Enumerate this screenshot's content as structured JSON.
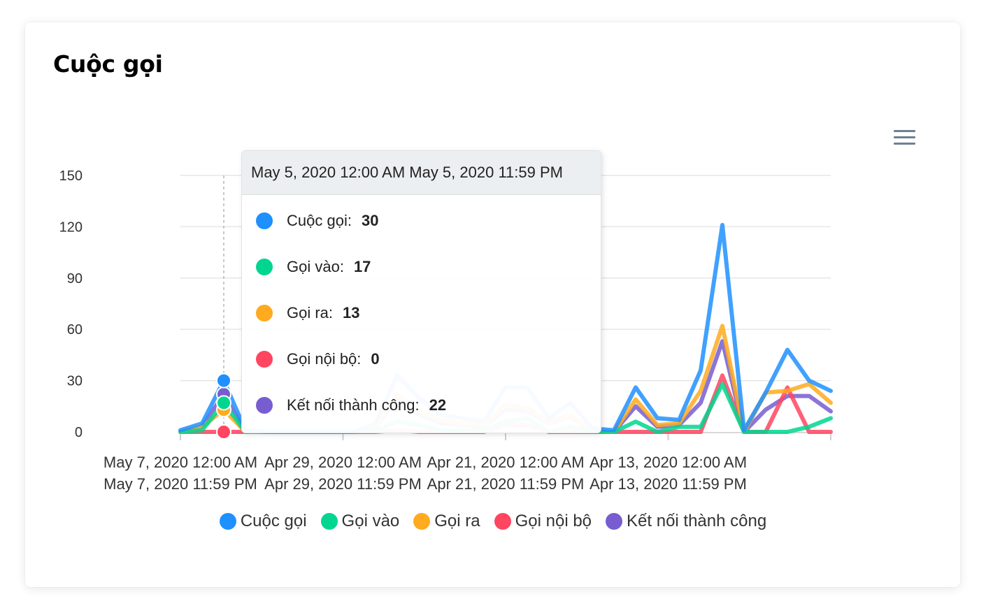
{
  "card": {
    "title": "Cuộc gọi"
  },
  "chart_data": {
    "type": "line",
    "title": "Cuộc gọi",
    "ylim": [
      0,
      150
    ],
    "yticks": [
      0,
      30,
      60,
      90,
      120,
      150
    ],
    "x_tick_labels": [
      [
        "May 7, 2020 12:00 AM",
        "May 7, 2020 11:59 PM"
      ],
      [
        "Apr 29, 2020 12:00 AM",
        "Apr 29, 2020 11:59 PM"
      ],
      [
        "Apr 21, 2020 12:00 AM",
        "Apr 21, 2020 11:59 PM"
      ],
      [
        "Apr 13, 2020 12:00 AM",
        "Apr 13, 2020 11:59 PM"
      ]
    ],
    "point_count": 31,
    "series": [
      {
        "name": "Cuộc gọi",
        "color": "#1e90ff",
        "values": [
          1,
          5,
          30,
          1,
          0,
          0,
          0,
          0,
          0,
          5,
          33,
          20,
          10,
          8,
          6,
          26,
          26,
          8,
          17,
          2,
          1,
          26,
          8,
          7,
          36,
          121,
          1,
          23,
          48,
          30,
          24
        ]
      },
      {
        "name": "Gọi vào",
        "color": "#00d68f",
        "values": [
          0,
          1,
          17,
          0,
          0,
          0,
          0,
          0,
          0,
          1,
          6,
          4,
          1,
          1,
          1,
          6,
          8,
          0,
          3,
          0,
          0,
          6,
          0,
          3,
          3,
          28,
          0,
          0,
          0,
          3,
          8
        ]
      },
      {
        "name": "Gọi ra",
        "color": "#ffaa1f",
        "values": [
          0,
          3,
          13,
          0,
          0,
          0,
          0,
          0,
          0,
          3,
          22,
          12,
          7,
          5,
          4,
          16,
          14,
          6,
          10,
          0,
          0,
          19,
          4,
          5,
          24,
          62,
          0,
          23,
          24,
          28,
          17
        ]
      },
      {
        "name": "Gọi nội bộ",
        "color": "#ff4560",
        "values": [
          0,
          0,
          0,
          0,
          0,
          0,
          0,
          0,
          0,
          0,
          1,
          0,
          0,
          0,
          0,
          4,
          4,
          0,
          0,
          0,
          0,
          0,
          0,
          0,
          0,
          33,
          0,
          0,
          26,
          0,
          0
        ]
      },
      {
        "name": "Kết nối thành công",
        "color": "#775dd0",
        "values": [
          0,
          3,
          22,
          0,
          0,
          0,
          0,
          0,
          0,
          2,
          20,
          10,
          5,
          4,
          3,
          13,
          12,
          5,
          9,
          0,
          0,
          15,
          3,
          4,
          17,
          53,
          0,
          13,
          21,
          21,
          12
        ]
      }
    ],
    "hover_index": 2,
    "legend_position": "bottom-center"
  },
  "tooltip": {
    "title": "May 5, 2020 12:00 AM May 5, 2020 11:59 PM",
    "rows": [
      {
        "label": "Cuộc gọi:",
        "value": "30",
        "color": "#1e90ff"
      },
      {
        "label": "Gọi vào:",
        "value": "17",
        "color": "#00d68f"
      },
      {
        "label": "Gọi ra:",
        "value": "13",
        "color": "#ffaa1f"
      },
      {
        "label": "Gọi nội bộ:",
        "value": "0",
        "color": "#ff4560"
      },
      {
        "label": "Kết nối thành công:",
        "value": "22",
        "color": "#775dd0"
      }
    ]
  },
  "legend": [
    {
      "label": "Cuộc gọi",
      "color": "#1e90ff"
    },
    {
      "label": "Gọi vào",
      "color": "#00d68f"
    },
    {
      "label": "Gọi ra",
      "color": "#ffaa1f"
    },
    {
      "label": "Gọi nội bộ",
      "color": "#ff4560"
    },
    {
      "label": "Kết nối thành công",
      "color": "#775dd0"
    }
  ]
}
